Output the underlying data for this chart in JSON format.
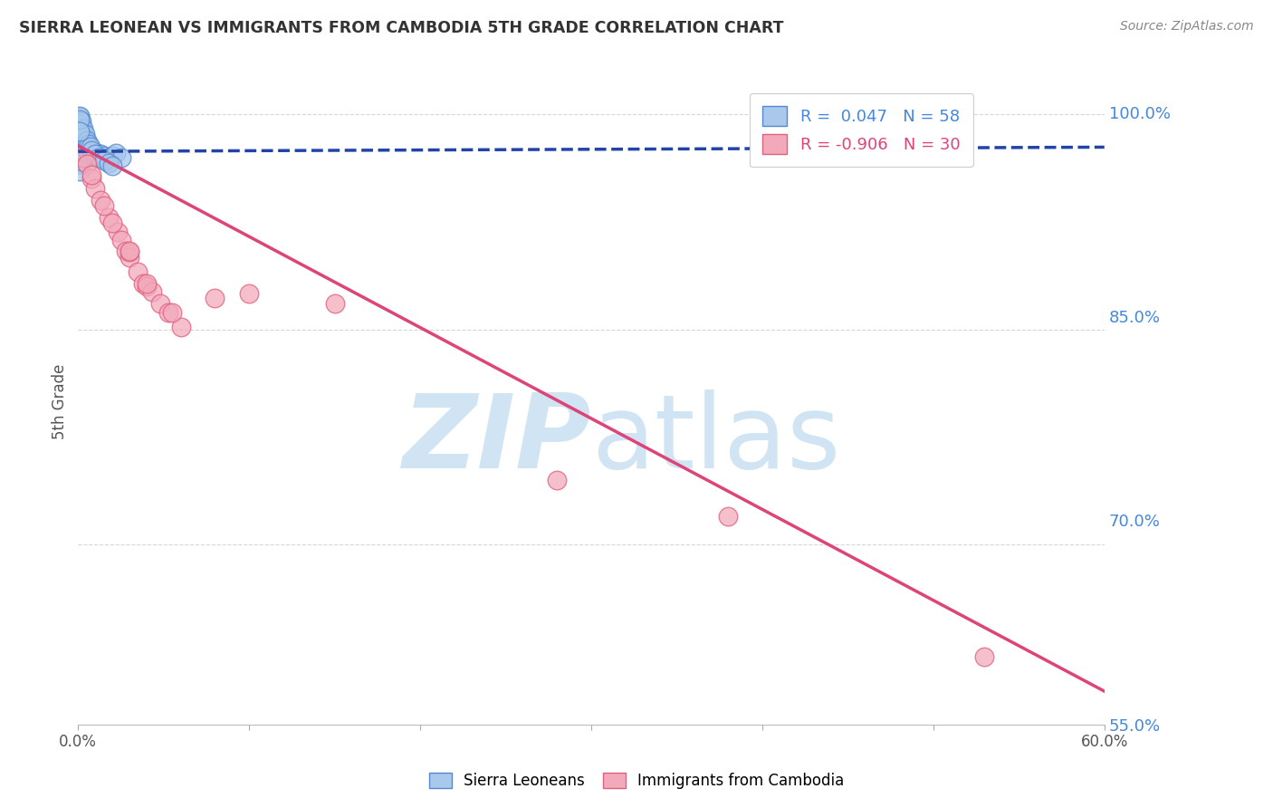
{
  "title": "SIERRA LEONEAN VS IMMIGRANTS FROM CAMBODIA 5TH GRADE CORRELATION CHART",
  "source": "Source: ZipAtlas.com",
  "ylabel": "5th Grade",
  "xlim": [
    0.0,
    0.6
  ],
  "ylim": [
    0.575,
    1.025
  ],
  "yticks": [
    1.0,
    0.85,
    0.7,
    0.55
  ],
  "ytick_labels": [
    "100.0%",
    "85.0%",
    "70.0%",
    "55.0%"
  ],
  "xticks": [
    0.0,
    0.1,
    0.2,
    0.3,
    0.4,
    0.5,
    0.6
  ],
  "xtick_labels": [
    "0.0%",
    "",
    "",
    "",
    "",
    "",
    "60.0%"
  ],
  "blue_label": "Sierra Leoneans",
  "pink_label": "Immigrants from Cambodia",
  "blue_R": 0.047,
  "blue_N": 58,
  "pink_R": -0.906,
  "pink_N": 30,
  "blue_color": "#A8C8EC",
  "pink_color": "#F2AABB",
  "blue_edge_color": "#5588CC",
  "pink_edge_color": "#E06080",
  "blue_line_color": "#2244AA",
  "pink_line_color": "#DD4477",
  "watermark_color": "#D0E4F4",
  "blue_trend_x": [
    0.0,
    0.6
  ],
  "blue_trend_y": [
    0.974,
    0.977
  ],
  "pink_trend_x": [
    0.0,
    0.6
  ],
  "pink_trend_y": [
    0.978,
    0.598
  ],
  "blue_x": [
    0.001,
    0.001,
    0.001,
    0.001,
    0.001,
    0.001,
    0.001,
    0.001,
    0.002,
    0.002,
    0.002,
    0.002,
    0.002,
    0.002,
    0.003,
    0.003,
    0.003,
    0.003,
    0.004,
    0.004,
    0.004,
    0.005,
    0.005,
    0.006,
    0.006,
    0.007,
    0.008,
    0.009,
    0.01,
    0.011,
    0.012,
    0.013,
    0.014,
    0.015,
    0.016,
    0.018,
    0.02,
    0.022,
    0.025,
    0.001,
    0.001,
    0.001,
    0.002,
    0.002,
    0.003,
    0.003,
    0.004,
    0.005,
    0.006,
    0.007,
    0.008,
    0.01,
    0.012,
    0.015,
    0.018,
    0.02,
    0.001,
    0.001
  ],
  "blue_y": [
    0.995,
    0.99,
    0.985,
    0.98,
    0.975,
    0.97,
    0.965,
    0.96,
    0.992,
    0.987,
    0.982,
    0.977,
    0.972,
    0.967,
    0.985,
    0.98,
    0.975,
    0.97,
    0.983,
    0.978,
    0.973,
    0.98,
    0.975,
    0.978,
    0.973,
    0.976,
    0.974,
    0.972,
    0.971,
    0.973,
    0.97,
    0.972,
    0.969,
    0.971,
    0.968,
    0.97,
    0.971,
    0.973,
    0.97,
    0.998,
    0.999,
    0.993,
    0.995,
    0.988,
    0.99,
    0.984,
    0.986,
    0.982,
    0.979,
    0.977,
    0.975,
    0.972,
    0.97,
    0.968,
    0.966,
    0.964,
    0.996,
    0.988
  ],
  "pink_x": [
    0.003,
    0.005,
    0.008,
    0.01,
    0.013,
    0.018,
    0.023,
    0.025,
    0.028,
    0.03,
    0.035,
    0.038,
    0.04,
    0.043,
    0.048,
    0.053,
    0.06,
    0.008,
    0.015,
    0.02,
    0.03,
    0.1,
    0.15,
    0.055,
    0.08,
    0.28,
    0.38,
    0.53,
    0.03,
    0.04
  ],
  "pink_y": [
    0.97,
    0.965,
    0.955,
    0.948,
    0.94,
    0.928,
    0.918,
    0.912,
    0.905,
    0.9,
    0.89,
    0.882,
    0.88,
    0.876,
    0.868,
    0.862,
    0.852,
    0.958,
    0.936,
    0.924,
    0.904,
    0.875,
    0.868,
    0.862,
    0.872,
    0.745,
    0.72,
    0.622,
    0.905,
    0.882
  ]
}
